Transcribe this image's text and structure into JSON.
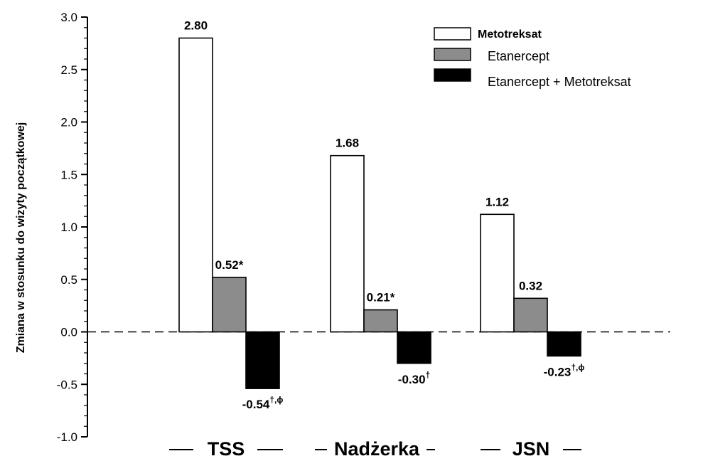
{
  "chart_data": {
    "type": "bar",
    "title": "",
    "xlabel": "",
    "ylabel": "Zmiana w stosunku do wizyty początkowej",
    "ylim": [
      -1.0,
      3.0
    ],
    "yticks": [
      "3.0",
      "2.5",
      "2.0",
      "1.5",
      "1.0",
      "0.5",
      "0.0",
      "-0.5",
      "-1.0"
    ],
    "categories": [
      "TSS",
      "Nadżerka",
      "JSN"
    ],
    "series": [
      {
        "name": "Metotreksat",
        "color": "#ffffff",
        "values": [
          2.8,
          1.68,
          1.12
        ],
        "labels": [
          "2.80",
          "1.68",
          "1.12"
        ],
        "marks": [
          "",
          "",
          ""
        ]
      },
      {
        "name": "Etanercept",
        "color": "#8c8c8c",
        "values": [
          0.52,
          0.21,
          0.32
        ],
        "labels": [
          "0.52",
          "0.21",
          "0.32"
        ],
        "marks": [
          "*",
          "*",
          ""
        ]
      },
      {
        "name": "Etanercept + Metotreksat",
        "color": "#000000",
        "values": [
          -0.54,
          -0.3,
          -0.23
        ],
        "labels": [
          "-0.54",
          "-0.30",
          "-0.23"
        ],
        "marks": [
          "†,ϕ",
          "†",
          "†,ϕ"
        ]
      }
    ],
    "zero_line": "dashed",
    "grid": false,
    "legend_position": "top-right"
  }
}
